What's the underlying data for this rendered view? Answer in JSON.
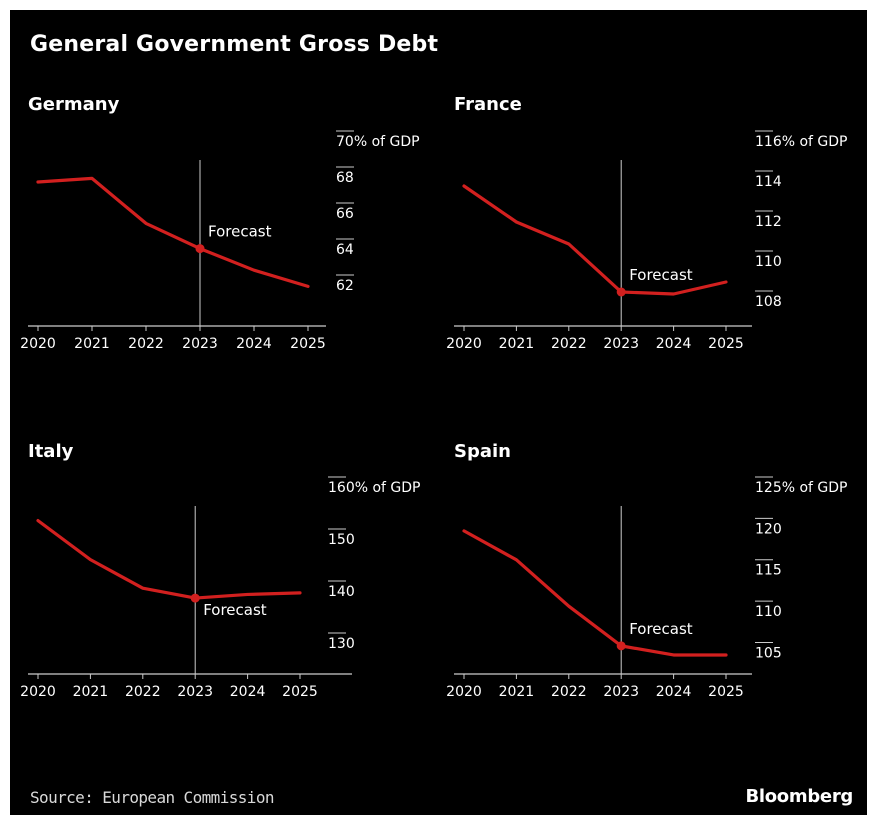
{
  "title": "General Government Gross Debt",
  "source": "Source: European Commission",
  "brand": "Bloomberg",
  "colors": {
    "background": "#000000",
    "line": "#d2201f",
    "text": "#ffffff",
    "axis": "#cccccc"
  },
  "chart_data": [
    {
      "type": "line",
      "title": "Germany",
      "categories": [
        "2020",
        "2021",
        "2022",
        "2023",
        "2024",
        "2025"
      ],
      "series": [
        {
          "values": [
            68.0,
            68.2,
            65.7,
            64.3,
            63.1,
            62.2
          ]
        }
      ],
      "ylim": [
        60,
        70
      ],
      "yticks": [
        62,
        64,
        66,
        68,
        70
      ],
      "ytick_labels": [
        "62",
        "64",
        "66",
        "68",
        "70% of GDP"
      ],
      "forecast_start": "2023",
      "annotation": "Forecast",
      "annotation_placement": "above"
    },
    {
      "type": "line",
      "title": "France",
      "categories": [
        "2020",
        "2021",
        "2022",
        "2023",
        "2024",
        "2025"
      ],
      "series": [
        {
          "values": [
            114.0,
            112.2,
            111.1,
            108.7,
            108.6,
            109.2
          ]
        }
      ],
      "ylim": [
        107,
        116
      ],
      "yticks": [
        108,
        110,
        112,
        114,
        116
      ],
      "ytick_labels": [
        "108",
        "110",
        "112",
        "114",
        "116% of GDP"
      ],
      "forecast_start": "2023",
      "annotation": "Forecast",
      "annotation_placement": "above"
    },
    {
      "type": "line",
      "title": "Italy",
      "categories": [
        "2020",
        "2021",
        "2022",
        "2023",
        "2024",
        "2025"
      ],
      "series": [
        {
          "values": [
            154.5,
            147.0,
            141.5,
            139.6,
            140.3,
            140.6
          ]
        }
      ],
      "ylim": [
        125,
        160
      ],
      "yticks": [
        130,
        140,
        150,
        160
      ],
      "ytick_labels": [
        "130",
        "140",
        "150",
        "160% of GDP"
      ],
      "forecast_start": "2023",
      "annotation": "Forecast",
      "annotation_placement": "below"
    },
    {
      "type": "line",
      "title": "Spain",
      "categories": [
        "2020",
        "2021",
        "2022",
        "2023",
        "2024",
        "2025"
      ],
      "series": [
        {
          "values": [
            120.3,
            116.8,
            111.2,
            106.4,
            105.3,
            105.3
          ]
        }
      ],
      "ylim": [
        103,
        125
      ],
      "yticks": [
        105,
        110,
        115,
        120,
        125
      ],
      "ytick_labels": [
        "105",
        "110",
        "115",
        "120",
        "125% of GDP"
      ],
      "forecast_start": "2023",
      "annotation": "Forecast",
      "annotation_placement": "above"
    }
  ]
}
